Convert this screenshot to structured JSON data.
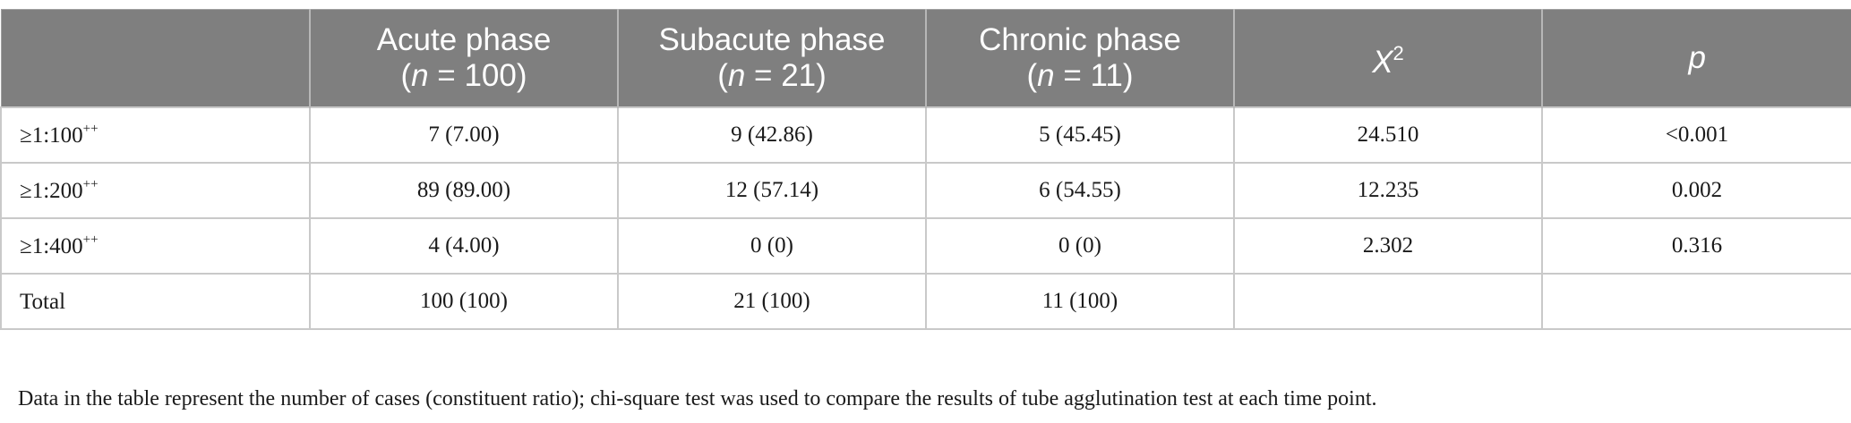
{
  "table": {
    "columns": [
      {
        "label": "",
        "sub_pre": "",
        "sub_var": "",
        "sub_post": ""
      },
      {
        "label": "Acute phase",
        "sub_pre": "(",
        "sub_var": "n",
        "sub_post": " = 100)"
      },
      {
        "label": "Subacute phase",
        "sub_pre": "(",
        "sub_var": "n",
        "sub_post": " = 21)"
      },
      {
        "label": "Chronic phase",
        "sub_pre": "(",
        "sub_var": "n",
        "sub_post": " = 11)"
      },
      {
        "label": "X",
        "sup": "2"
      },
      {
        "label": "p"
      }
    ],
    "rows": [
      {
        "label": "≥1:100",
        "sup": "++",
        "cells": [
          "7 (7.00)",
          "9 (42.86)",
          "5 (45.45)",
          "24.510",
          "<0.001"
        ]
      },
      {
        "label": "≥1:200",
        "sup": "++",
        "cells": [
          "89 (89.00)",
          "12 (57.14)",
          "6 (54.55)",
          "12.235",
          "0.002"
        ]
      },
      {
        "label": "≥1:400",
        "sup": "++",
        "cells": [
          "4 (4.00)",
          "0 (0)",
          "0 (0)",
          "2.302",
          "0.316"
        ]
      },
      {
        "label": "Total",
        "sup": "",
        "cells": [
          "100 (100)",
          "21 (100)",
          "11 (100)",
          "",
          ""
        ]
      }
    ]
  },
  "footnote": "Data in the table represent the number of cases (constituent ratio); chi-square test was used to compare the results of tube agglutination test at each time point.",
  "colors": {
    "header_bg": "#7f7f7f",
    "header_text": "#ffffff",
    "grid": "#c9c9c9"
  }
}
